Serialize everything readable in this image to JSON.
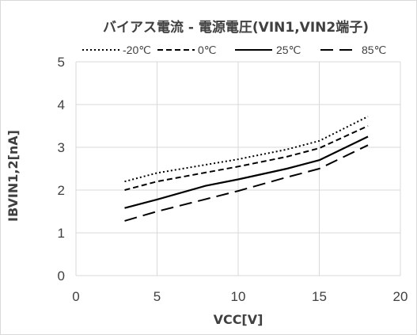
{
  "chart_data": {
    "type": "line",
    "title": "バイアス電流 - 電源電圧(VIN1,VIN2端子)",
    "xlabel": "VCC[V]",
    "ylabel": "IBVIN1,2[nA]",
    "xlim": [
      0,
      20
    ],
    "ylim": [
      0,
      5
    ],
    "xticks": [
      0,
      5,
      10,
      15,
      20
    ],
    "yticks": [
      0,
      1,
      2,
      3,
      4,
      5
    ],
    "xtick_labels": [
      "0",
      "5",
      "10",
      "15",
      "20"
    ],
    "ytick_labels": [
      "0",
      "1",
      "2",
      "3",
      "4",
      "5"
    ],
    "grid": true,
    "legend_position": "top",
    "line_color": "#000000",
    "series": [
      {
        "name": "-20℃",
        "dash": "dotted",
        "points": [
          [
            3,
            2.2
          ],
          [
            5,
            2.4
          ],
          [
            10,
            2.72
          ],
          [
            13,
            2.95
          ],
          [
            15,
            3.15
          ],
          [
            18,
            3.72
          ]
        ]
      },
      {
        "name": "0℃",
        "dash": "short-dash",
        "points": [
          [
            3,
            2.0
          ],
          [
            5,
            2.2
          ],
          [
            10,
            2.55
          ],
          [
            13,
            2.78
          ],
          [
            15,
            2.98
          ],
          [
            18,
            3.5
          ]
        ]
      },
      {
        "name": "25℃",
        "dash": "solid",
        "points": [
          [
            3,
            1.58
          ],
          [
            5,
            1.78
          ],
          [
            8,
            2.1
          ],
          [
            10,
            2.25
          ],
          [
            13,
            2.5
          ],
          [
            15,
            2.7
          ],
          [
            18,
            3.25
          ]
        ]
      },
      {
        "name": "85℃",
        "dash": "long-dash",
        "points": [
          [
            3,
            1.28
          ],
          [
            5,
            1.5
          ],
          [
            10,
            1.98
          ],
          [
            13,
            2.3
          ],
          [
            15,
            2.5
          ],
          [
            18,
            3.05
          ]
        ]
      }
    ]
  }
}
